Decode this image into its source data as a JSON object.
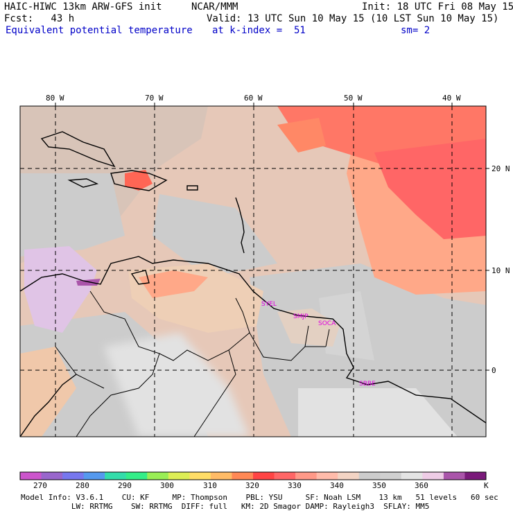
{
  "header": {
    "model_title": "HAIC-HIWC 13km ARW-GFS init",
    "org": "NCAR/MMM",
    "init": "Init: 18 UTC Fri 08 May 15",
    "fcst": "Fcst:   43 h",
    "valid": "Valid: 13 UTC Sun 10 May 15 (10 LST Sun 10 May 15)",
    "field": "Equivalent potential temperature",
    "level": "at k-index =  51",
    "smooth": "sm= 2"
  },
  "axes": {
    "lon_labels": [
      "80 W",
      "70 W",
      "60 W",
      "50 W",
      "40 W"
    ],
    "lat_labels": [
      "20 N",
      "10 N",
      "0"
    ]
  },
  "stations": [
    "SYEL",
    "SMJP",
    "SOCA",
    "SBBE"
  ],
  "colorbar": {
    "labels": [
      "270",
      "280",
      "290",
      "300",
      "310",
      "320",
      "330",
      "340",
      "350",
      "360",
      "K"
    ],
    "colors": [
      "#cc55cc",
      "#9966cc",
      "#7777ee",
      "#5599ee",
      "#33ddaa",
      "#33ee88",
      "#99ee55",
      "#ddee55",
      "#ffdd66",
      "#ffbb66",
      "#ff8855",
      "#ff4444",
      "#ff6666",
      "#ff9988",
      "#ffbbaa",
      "#f3d4c4",
      "#cccccc",
      "#d0d0d0",
      "#e4e4e4",
      "#eecce6",
      "#aa55aa",
      "#7a1a7a"
    ]
  },
  "footer": {
    "line1": "Model Info: V3.6.1    CU: KF     MP: Thompson    PBL: YSU     SF: Noah LSM    13 km   51 levels   60 sec",
    "line2": "           LW: RRTMG    SW: RRTMG  DIFF: full   KM: 2D Smagor DAMP: Rayleigh3  SFLAY: MM5"
  }
}
